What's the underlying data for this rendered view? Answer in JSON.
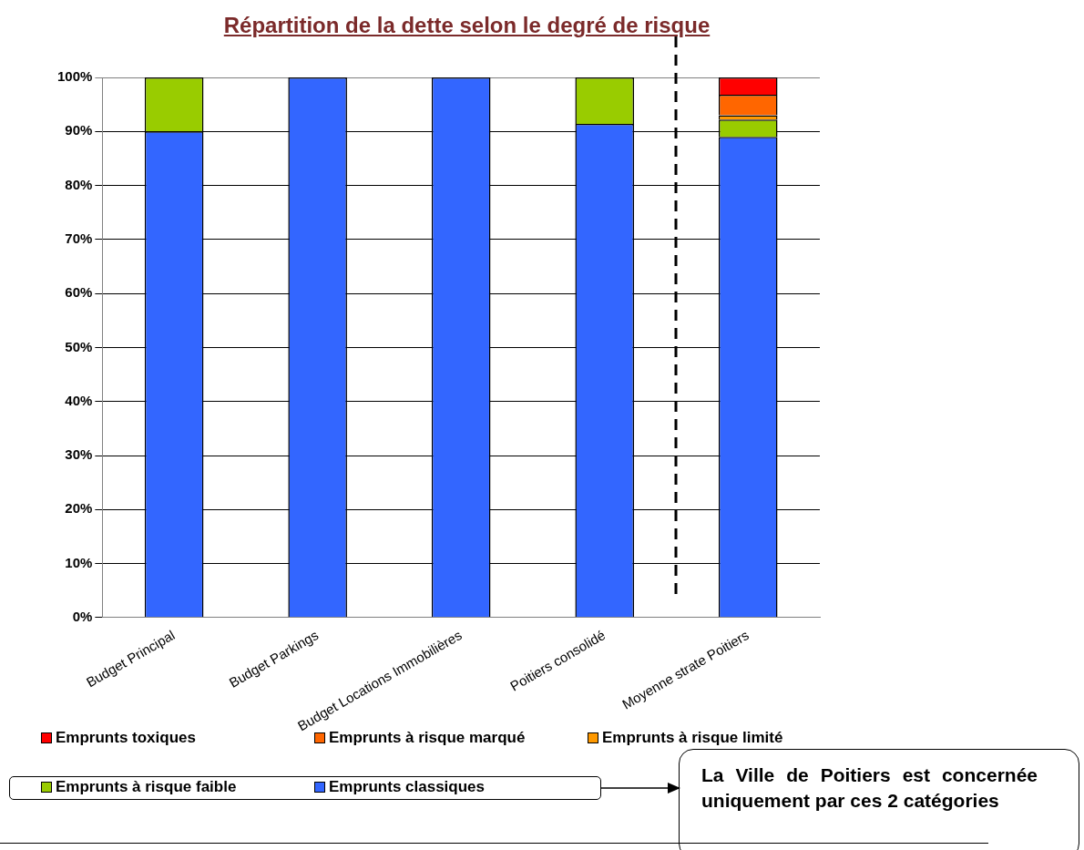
{
  "chart_data": {
    "type": "bar",
    "title": "Répartition de la dette selon le degré de risque",
    "categories": [
      "Budget Principal",
      "Budget Parkings",
      "Budget Locations Immobilières",
      "Poitiers consolidé",
      "Moyenne strate Poitiers"
    ],
    "stacked": true,
    "series": [
      {
        "name": "Emprunts classiques",
        "color": "#3366ff",
        "values": [
          90,
          100,
          100,
          91.4,
          89
        ]
      },
      {
        "name": "Emprunts à risque faible",
        "color": "#99cc00",
        "values": [
          10,
          0,
          0,
          8.6,
          3.2
        ]
      },
      {
        "name": "Emprunts à risque limité",
        "color": "#ff9900",
        "values": [
          0,
          0,
          0,
          0,
          0.8
        ]
      },
      {
        "name": "Emprunts à risque marqué",
        "color": "#ff6600",
        "values": [
          0,
          0,
          0,
          0,
          3.8
        ]
      },
      {
        "name": "Emprunts toxiques",
        "color": "#ff0000",
        "values": [
          0,
          0,
          0,
          0,
          3.2
        ]
      }
    ],
    "ylim": [
      0,
      100
    ],
    "yticks": [
      {
        "value": 0,
        "label": "0%"
      },
      {
        "value": 10,
        "label": "10%"
      },
      {
        "value": 20,
        "label": "20%"
      },
      {
        "value": 30,
        "label": "30%"
      },
      {
        "value": 40,
        "label": "40%"
      },
      {
        "value": 50,
        "label": "50%"
      },
      {
        "value": 60,
        "label": "60%"
      },
      {
        "value": 70,
        "label": "70%"
      },
      {
        "value": 80,
        "label": "80%"
      },
      {
        "value": 90,
        "label": "90%"
      },
      {
        "value": 100,
        "label": "100%"
      }
    ],
    "grid": "y",
    "legend": "bottom",
    "annotations": [
      "La Ville de Poitiers est concernée uniquement par ces 2 catégories"
    ]
  }
}
